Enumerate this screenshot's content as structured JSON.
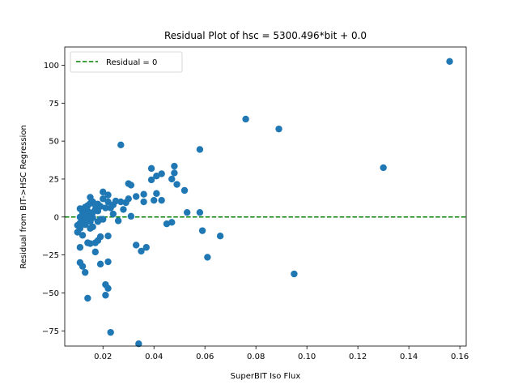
{
  "chart_data": {
    "type": "scatter",
    "title": "Residual Plot of hsc = 5300.496*bit + 0.0",
    "xlabel": "SuperBIT Iso Flux",
    "ylabel": "Residual from BIT->HSC Regression",
    "xlim": [
      0.005,
      0.1625
    ],
    "ylim": [
      -85,
      112
    ],
    "xticks": [
      "0.02",
      "0.04",
      "0.06",
      "0.08",
      "0.10",
      "0.12",
      "0.14",
      "0.16"
    ],
    "xtick_values": [
      0.02,
      0.04,
      0.06,
      0.08,
      0.1,
      0.12,
      0.14,
      0.16
    ],
    "yticks": [
      "−75",
      "−50",
      "−25",
      "0",
      "25",
      "50",
      "75",
      "100"
    ],
    "ytick_values": [
      -75,
      -50,
      -25,
      0,
      25,
      50,
      75,
      100
    ],
    "grid": false,
    "legend_position": "top-left",
    "marker_color": "#1f77b4",
    "reference_line": {
      "label": "Residual = 0",
      "y": 0,
      "color": "#008000",
      "style": "dashed"
    },
    "points": [
      [
        0.156,
        102.5
      ],
      [
        0.13,
        32.5
      ],
      [
        0.095,
        -37.5
      ],
      [
        0.089,
        58
      ],
      [
        0.076,
        64.5
      ],
      [
        0.066,
        -12.5
      ],
      [
        0.061,
        -26.5
      ],
      [
        0.059,
        -9
      ],
      [
        0.058,
        44.5
      ],
      [
        0.058,
        3
      ],
      [
        0.053,
        3
      ],
      [
        0.052,
        17.5
      ],
      [
        0.049,
        21.5
      ],
      [
        0.048,
        33.5
      ],
      [
        0.048,
        29
      ],
      [
        0.047,
        25
      ],
      [
        0.047,
        -3.5
      ],
      [
        0.045,
        -4.5
      ],
      [
        0.043,
        28.5
      ],
      [
        0.043,
        11
      ],
      [
        0.041,
        27
      ],
      [
        0.041,
        15.5
      ],
      [
        0.04,
        11
      ],
      [
        0.039,
        24.5
      ],
      [
        0.039,
        32
      ],
      [
        0.037,
        -20
      ],
      [
        0.036,
        15
      ],
      [
        0.036,
        10
      ],
      [
        0.035,
        -22.5
      ],
      [
        0.034,
        -83.5
      ],
      [
        0.033,
        -18.5
      ],
      [
        0.033,
        13.5
      ],
      [
        0.031,
        0.5
      ],
      [
        0.031,
        21
      ],
      [
        0.03,
        22
      ],
      [
        0.03,
        12
      ],
      [
        0.029,
        9.5
      ],
      [
        0.028,
        5
      ],
      [
        0.027,
        47.5
      ],
      [
        0.027,
        10
      ],
      [
        0.026,
        -2.5
      ],
      [
        0.025,
        10.5
      ],
      [
        0.024,
        8
      ],
      [
        0.023,
        -76
      ],
      [
        0.022,
        14.5
      ],
      [
        0.022,
        -29.5
      ],
      [
        0.022,
        -47
      ],
      [
        0.022,
        -12.5
      ],
      [
        0.022,
        10
      ],
      [
        0.021,
        -44.5
      ],
      [
        0.021,
        -51.5
      ],
      [
        0.021,
        6
      ],
      [
        0.02,
        -1.5
      ],
      [
        0.02,
        16.5
      ],
      [
        0.019,
        7
      ],
      [
        0.019,
        -31
      ],
      [
        0.019,
        -13
      ],
      [
        0.018,
        -15.5
      ],
      [
        0.018,
        8.5
      ],
      [
        0.018,
        -3
      ],
      [
        0.017,
        -23
      ],
      [
        0.017,
        -17
      ],
      [
        0.017,
        5
      ],
      [
        0.016,
        10
      ],
      [
        0.016,
        -6.5
      ],
      [
        0.016,
        -0.5
      ],
      [
        0.015,
        13
      ],
      [
        0.015,
        9
      ],
      [
        0.015,
        -7.5
      ],
      [
        0.015,
        -17.5
      ],
      [
        0.015,
        2
      ],
      [
        0.014,
        7.5
      ],
      [
        0.014,
        -1
      ],
      [
        0.014,
        -53.5
      ],
      [
        0.014,
        -17
      ],
      [
        0.014,
        4
      ],
      [
        0.013,
        -36.5
      ],
      [
        0.013,
        -5
      ],
      [
        0.013,
        6.5
      ],
      [
        0.012,
        -32.5
      ],
      [
        0.012,
        3
      ],
      [
        0.012,
        -2
      ],
      [
        0.011,
        -30
      ],
      [
        0.011,
        -20
      ],
      [
        0.011,
        -7.5
      ],
      [
        0.011,
        5.5
      ],
      [
        0.011,
        0
      ],
      [
        0.011,
        -4
      ],
      [
        0.01,
        -10
      ],
      [
        0.01,
        -5.5
      ],
      [
        0.013,
        1
      ],
      [
        0.018,
        4
      ],
      [
        0.02,
        12
      ],
      [
        0.023,
        6
      ],
      [
        0.016,
        3
      ],
      [
        0.017,
        8
      ],
      [
        0.012,
        -12
      ],
      [
        0.019,
        -1.5
      ],
      [
        0.024,
        2
      ],
      [
        0.015,
        -3
      ]
    ]
  }
}
